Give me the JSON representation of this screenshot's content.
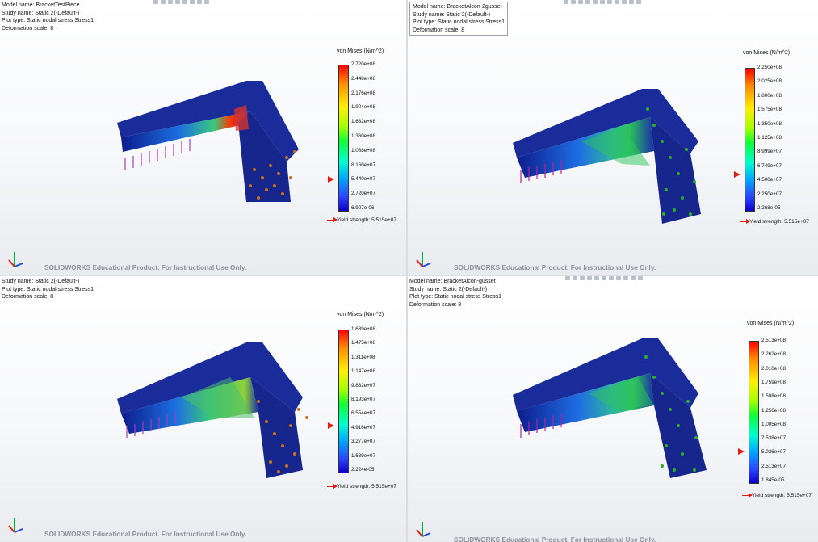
{
  "panels": [
    {
      "info": [
        "Model name: BracketTestPiece",
        "Study name: Static 2(-Default-)",
        "Plot type: Static nodal stress Stress1",
        "Deformation scale: 8"
      ],
      "legend_title": "von Mises (N/m^2)",
      "ticks": [
        "2.720e+08",
        "2.448e+08",
        "2.176e+08",
        "1.904e+08",
        "1.632e+08",
        "1.360e+08",
        "1.088e+08",
        "8.160e+07",
        "5.440e+07",
        "2.720e+07",
        "6.907e-06"
      ],
      "yield_label": "Yield strength: 5.515e+07",
      "watermark": "SOLIDWORKS Educational Product. For Instructional Use Only.",
      "load_arrow_color": "#a43fb8",
      "fixture_arrow_color": "#c96f1c"
    },
    {
      "info": [
        "Model name: BracketAlcon-2gusset",
        "Study name: Static 2(-Default-)",
        "Plot type: Static nodal stress Stress1",
        "Deformation scale: 8"
      ],
      "legend_title": "von Mises (N/m^2)",
      "ticks": [
        "2.250e+08",
        "2.025e+08",
        "1.800e+08",
        "1.575e+08",
        "1.350e+08",
        "1.125e+08",
        "8.999e+07",
        "6.749e+07",
        "4.500e+07",
        "2.250e+07",
        "2.268e-05"
      ],
      "yield_label": "Yield strength: 5.515e+07",
      "watermark": "SOLIDWORKS Educational Product. For Instructional Use Only.",
      "load_arrow_color": "#b0249c",
      "fixture_arrow_color": "#2bb02b"
    },
    {
      "info": [
        "Study name: Static 2(-Default-)",
        "Plot type: Static nodal stress Stress1",
        "Deformation scale: 8"
      ],
      "legend_title": "von Mises (N/m^2)",
      "ticks": [
        "1.639e+08",
        "1.475e+08",
        "1.311e+08",
        "1.147e+08",
        "9.832e+07",
        "8.193e+07",
        "6.554e+07",
        "4.916e+07",
        "3.277e+07",
        "1.639e+07",
        "2.224e-05"
      ],
      "yield_label": "Yield strength: 5.515e+07",
      "watermark": "SOLIDWORKS Educational Product. For Instructional Use Only.",
      "load_arrow_color": "#a43fb8",
      "fixture_arrow_color": "#c96f1c"
    },
    {
      "info": [
        "Model name: BracketAlcon-gusset",
        "Study name: Static 2(-Default-)",
        "Plot type: Static nodal stress Stress1",
        "Deformation scale: 8"
      ],
      "legend_title": "von Mises (N/m^2)",
      "ticks": [
        "2.513e+08",
        "2.262e+08",
        "2.010e+08",
        "1.759e+08",
        "1.508e+08",
        "1.256e+08",
        "1.005e+08",
        "7.538e+07",
        "5.026e+07",
        "2.513e+07",
        "1.845e-05"
      ],
      "yield_label": "Yield strength: 5.515e+07",
      "watermark": "SOLIDWORKS Educational Product. For Instructional Use Only.",
      "load_arrow_color": "#b0249c",
      "fixture_arrow_color": "#2bb02b"
    }
  ]
}
